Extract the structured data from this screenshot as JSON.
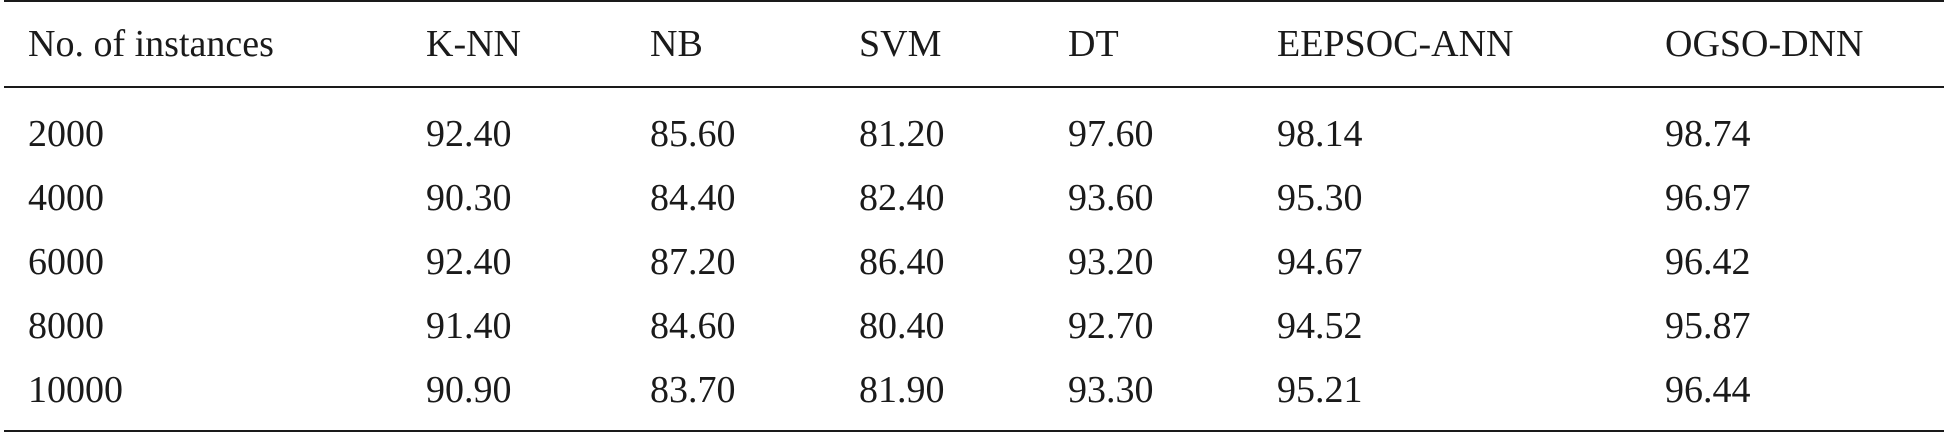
{
  "table": {
    "headers": [
      "No. of instances",
      "K-NN",
      "NB",
      "SVM",
      "DT",
      "EEPSOC-ANN",
      "OGSO-DNN"
    ],
    "rows": [
      [
        "2000",
        "92.40",
        "85.60",
        "81.20",
        "97.60",
        "98.14",
        "98.74"
      ],
      [
        "4000",
        "90.30",
        "84.40",
        "82.40",
        "93.60",
        "95.30",
        "96.97"
      ],
      [
        "6000",
        "92.40",
        "87.20",
        "86.40",
        "93.20",
        "94.67",
        "96.42"
      ],
      [
        "8000",
        "91.40",
        "84.60",
        "80.40",
        "92.70",
        "94.52",
        "95.87"
      ],
      [
        "10000",
        "90.90",
        "83.70",
        "81.90",
        "93.30",
        "95.21",
        "96.44"
      ]
    ]
  }
}
